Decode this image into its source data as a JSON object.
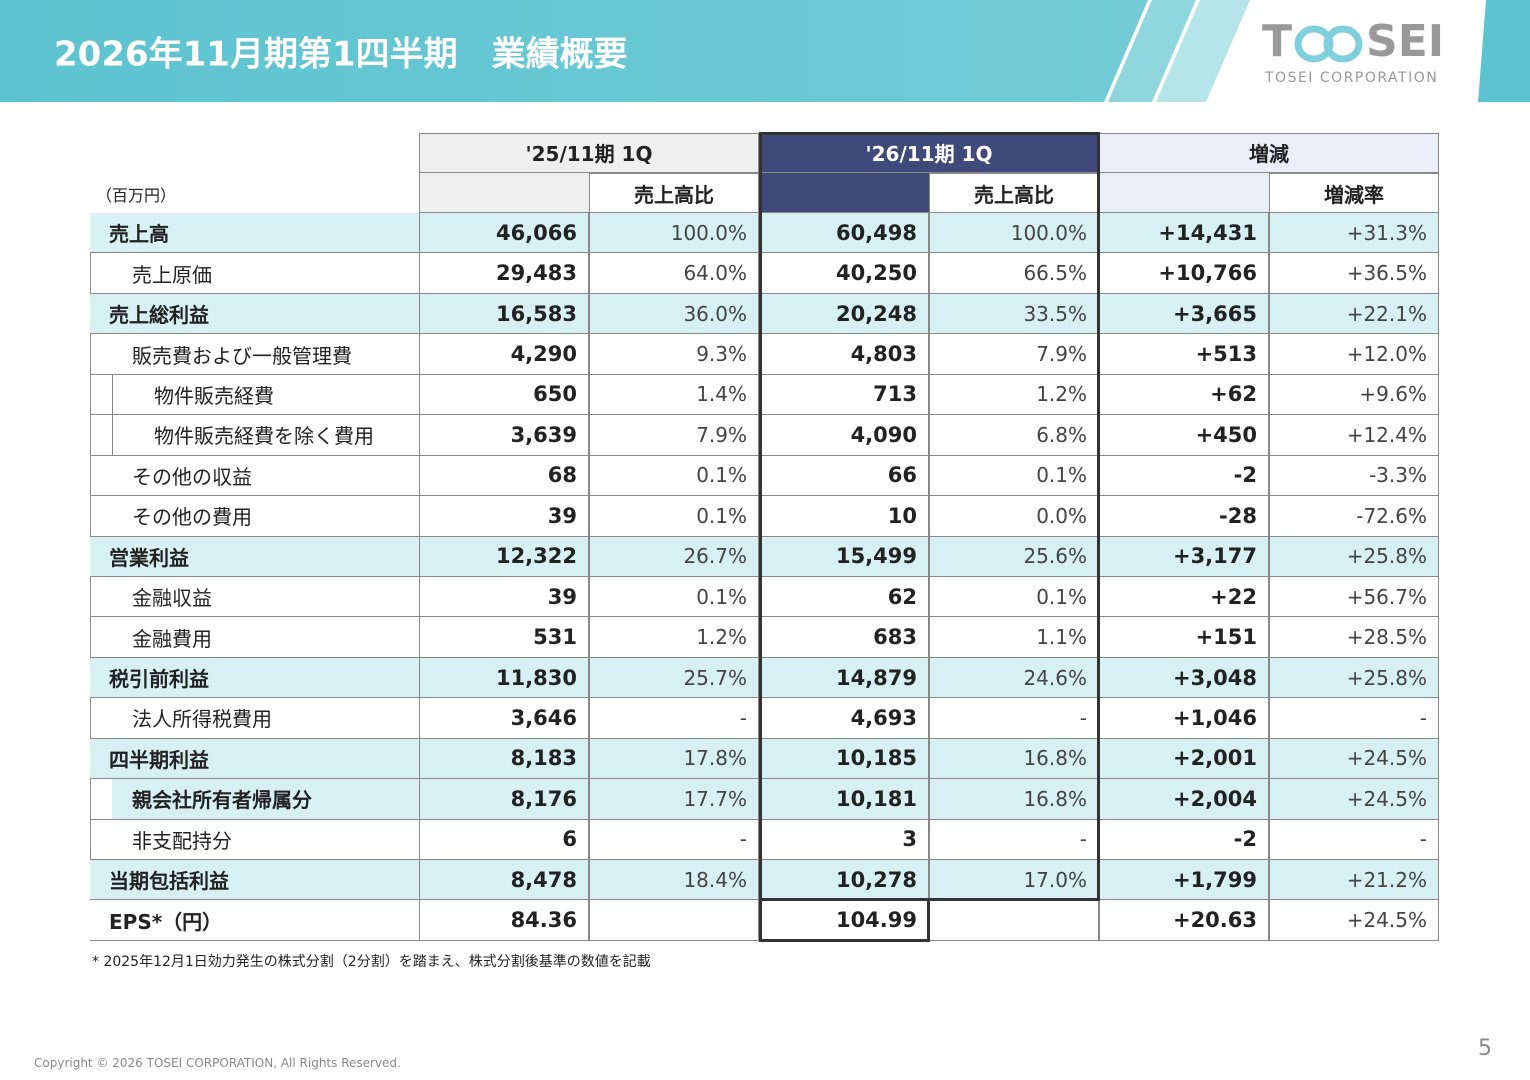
{
  "header": {
    "title": "2026年11月期第1四半期　業績概要"
  },
  "logo": {
    "left": "T",
    "right": "SEI",
    "subtitle": "TOSEI CORPORATION"
  },
  "table": {
    "unit": "（百万円）",
    "group_headers": [
      "'25/11期 1Q",
      "'26/11期 1Q",
      "増減"
    ],
    "sub_headers": [
      "売上高比",
      "売上高比",
      "増減率"
    ],
    "rows": [
      [
        "売上高",
        "46,066",
        "100.0%",
        "60,498",
        "100.0%",
        "+14,431",
        "+31.3%"
      ],
      [
        "売上原価",
        "29,483",
        "64.0%",
        "40,250",
        "66.5%",
        "+10,766",
        "+36.5%"
      ],
      [
        "売上総利益",
        "16,583",
        "36.0%",
        "20,248",
        "33.5%",
        "+3,665",
        "+22.1%"
      ],
      [
        "販売費および一般管理費",
        "4,290",
        "9.3%",
        "4,803",
        "7.9%",
        "+513",
        "+12.0%"
      ],
      [
        "物件販売経費",
        "650",
        "1.4%",
        "713",
        "1.2%",
        "+62",
        "+9.6%"
      ],
      [
        "物件販売経費を除く費用",
        "3,639",
        "7.9%",
        "4,090",
        "6.8%",
        "+450",
        "+12.4%"
      ],
      [
        "その他の収益",
        "68",
        "0.1%",
        "66",
        "0.1%",
        "-2",
        "-3.3%"
      ],
      [
        "その他の費用",
        "39",
        "0.1%",
        "10",
        "0.0%",
        "-28",
        "-72.6%"
      ],
      [
        "営業利益",
        "12,322",
        "26.7%",
        "15,499",
        "25.6%",
        "+3,177",
        "+25.8%"
      ],
      [
        "金融収益",
        "39",
        "0.1%",
        "62",
        "0.1%",
        "+22",
        "+56.7%"
      ],
      [
        "金融費用",
        "531",
        "1.2%",
        "683",
        "1.1%",
        "+151",
        "+28.5%"
      ],
      [
        "税引前利益",
        "11,830",
        "25.7%",
        "14,879",
        "24.6%",
        "+3,048",
        "+25.8%"
      ],
      [
        "法人所得税費用",
        "3,646",
        "-",
        "4,693",
        "-",
        "+1,046",
        "-"
      ],
      [
        "四半期利益",
        "8,183",
        "17.8%",
        "10,185",
        "16.8%",
        "+2,001",
        "+24.5%"
      ],
      [
        "親会社所有者帰属分",
        "8,176",
        "17.7%",
        "10,181",
        "16.8%",
        "+2,004",
        "+24.5%"
      ],
      [
        "非支配持分",
        "6",
        "-",
        "3",
        "-",
        "-2",
        "-"
      ],
      [
        "当期包括利益",
        "8,478",
        "18.4%",
        "10,278",
        "17.0%",
        "+1,799",
        "+21.2%"
      ],
      [
        "EPS*（円）",
        "84.36",
        null,
        "104.99",
        null,
        "+20.63",
        "+24.5%"
      ]
    ],
    "footnote": "* 2025年12月1日効力発生の株式分割（2分割）を踏まえ、株式分割後基準の数値を記載"
  },
  "footer": {
    "copyright": "Copyright © 2026 TOSEI CORPORATION, All Rights Reserved.",
    "page": "5"
  }
}
